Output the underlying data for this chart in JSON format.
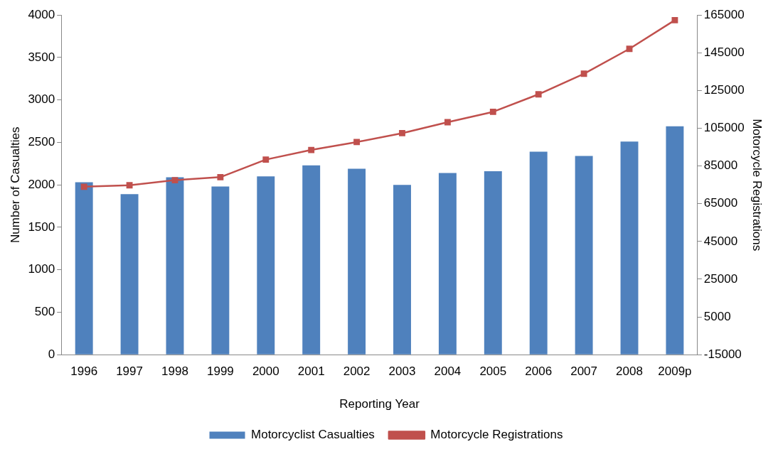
{
  "chart_data": {
    "type": "bar",
    "xlabel": "Reporting Year",
    "ylabel": "Number of Casualties",
    "y2label": "Motorcycle Registrations",
    "categories": [
      "1996",
      "1997",
      "1998",
      "1999",
      "2000",
      "2001",
      "2002",
      "2003",
      "2004",
      "2005",
      "2006",
      "2007",
      "2008",
      "2009p"
    ],
    "series": [
      {
        "name": "Motorcyclist Casualties",
        "color": "#4f81bd",
        "values": [
          2030,
          1890,
          2090,
          1980,
          2100,
          2230,
          2190,
          2000,
          2140,
          2160,
          2390,
          2340,
          2510,
          2690
        ]
      },
      {
        "name": "Motorcycle Registrations",
        "type": "line",
        "axis": "y2",
        "color": "#c0504d",
        "marker": "square",
        "values": [
          74000,
          74800,
          77500,
          79100,
          88400,
          93500,
          97700,
          102400,
          108200,
          113700,
          123000,
          133900,
          147100,
          162300
        ]
      }
    ],
    "ylim": [
      0,
      4000
    ],
    "yticks": [
      0,
      500,
      1000,
      1500,
      2000,
      2500,
      3000,
      3500,
      4000
    ],
    "y2lim": [
      -15000,
      165000
    ],
    "y2ticks": [
      -15000,
      5000,
      25000,
      45000,
      65000,
      85000,
      105000,
      125000,
      145000,
      165000
    ],
    "grid": false,
    "legend": "bottom"
  }
}
